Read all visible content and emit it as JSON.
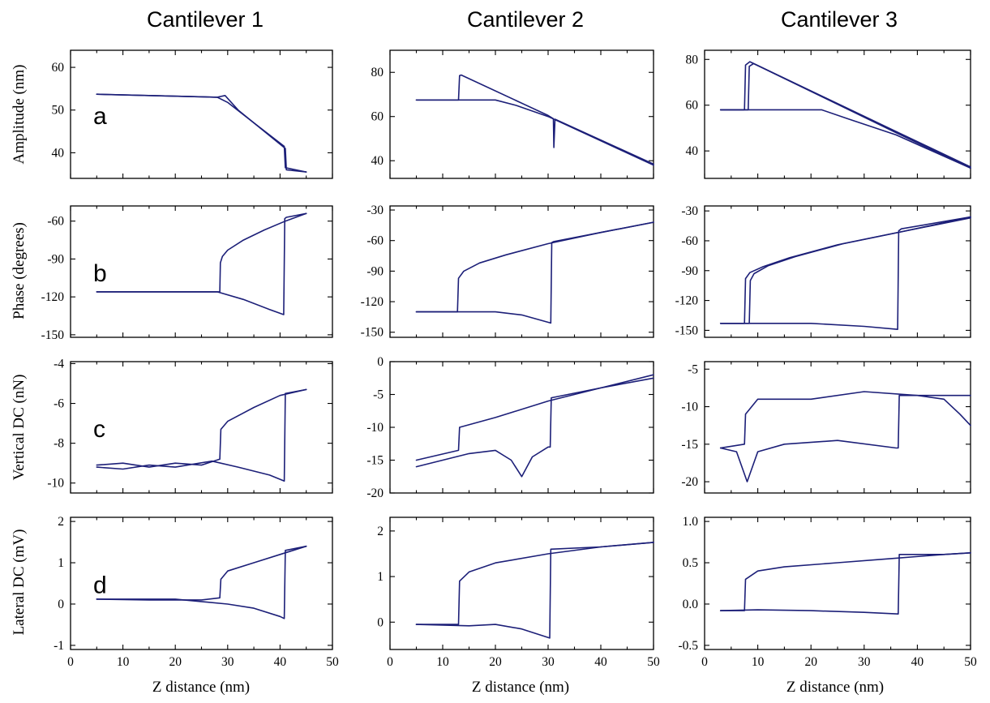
{
  "figure": {
    "column_titles": [
      "Cantilever 1",
      "Cantilever 2",
      "Cantilever 3"
    ],
    "row_ylabels": [
      "Amplitude (nm)",
      "Phase (degrees)",
      "Vertical DC (nN)",
      "Lateral DC (mV)"
    ],
    "row_letters": [
      "a",
      "b",
      "c",
      "d"
    ],
    "xlabel": "Z distance (nm)",
    "line_color": "#1c1f78"
  },
  "chart_data": [
    {
      "type": "line",
      "panel": "a",
      "column": 1,
      "ylabel": "Amplitude (nm)",
      "xlabel": "Z distance (nm)",
      "xlim": [
        0,
        50
      ],
      "ylim": [
        34,
        64
      ],
      "xticks": [
        0,
        10,
        20,
        30,
        40,
        50
      ],
      "yticks": [
        40,
        50,
        60
      ],
      "series": [
        {
          "x": [
            5,
            28,
            29.5,
            32,
            41,
            41.2,
            45
          ],
          "y": [
            53.7,
            53.0,
            53.4,
            50.0,
            41.0,
            36.0,
            35.5
          ]
        },
        {
          "x": [
            5,
            28,
            30,
            35,
            40.8,
            41,
            45
          ],
          "y": [
            53.7,
            53.0,
            51.8,
            47.0,
            41.5,
            36.5,
            35.5
          ]
        }
      ]
    },
    {
      "type": "line",
      "panel": "a",
      "column": 2,
      "ylabel": "Amplitude (nm)",
      "xlabel": "Z distance (nm)",
      "xlim": [
        0,
        50
      ],
      "ylim": [
        32,
        90
      ],
      "xticks": [
        0,
        10,
        20,
        30,
        40,
        50
      ],
      "yticks": [
        40,
        60,
        80
      ],
      "series": [
        {
          "x": [
            5,
            13,
            13.2,
            13.5,
            30,
            31,
            31.1,
            31.3,
            50
          ],
          "y": [
            67.5,
            67.5,
            78.5,
            78.8,
            60.5,
            59,
            46,
            58.8,
            38.5
          ]
        },
        {
          "x": [
            5,
            20,
            24,
            30,
            40,
            50
          ],
          "y": [
            67.5,
            67.5,
            65,
            60,
            49,
            38
          ]
        }
      ]
    },
    {
      "type": "line",
      "panel": "a",
      "column": 3,
      "ylabel": "Amplitude (nm)",
      "xlabel": "Z distance (nm)",
      "xlim": [
        0,
        50
      ],
      "ylim": [
        28,
        84
      ],
      "xticks": [
        0,
        10,
        20,
        30,
        40,
        50
      ],
      "yticks": [
        40,
        60,
        80
      ],
      "series": [
        {
          "x": [
            3,
            7.5,
            7.7,
            8.5,
            36,
            50
          ],
          "y": [
            58,
            58,
            77.5,
            79,
            48.5,
            33
          ]
        },
        {
          "x": [
            3,
            8.2,
            8.4,
            9.2,
            36,
            50
          ],
          "y": [
            58,
            58,
            77,
            78.2,
            48,
            32.5
          ]
        },
        {
          "x": [
            3,
            22,
            27,
            36,
            50
          ],
          "y": [
            58,
            58,
            54,
            47,
            32.5
          ]
        }
      ]
    },
    {
      "type": "line",
      "panel": "b",
      "column": 1,
      "ylabel": "Phase (degrees)",
      "xlabel": "Z distance (nm)",
      "xlim": [
        0,
        50
      ],
      "ylim": [
        -152,
        -48
      ],
      "xticks": [
        0,
        10,
        20,
        30,
        40,
        50
      ],
      "yticks": [
        -60,
        -90,
        -120,
        -150
      ],
      "series": [
        {
          "x": [
            5,
            28.5,
            28.6,
            29,
            30,
            33,
            37,
            41,
            45
          ],
          "y": [
            -116,
            -116,
            -93,
            -88,
            -83,
            -75,
            -67,
            -60,
            -54
          ]
        },
        {
          "x": [
            5,
            28,
            33,
            38,
            40.7,
            40.9,
            41.2,
            45
          ],
          "y": [
            -116,
            -116,
            -122,
            -130,
            -134,
            -58,
            -57,
            -54
          ]
        }
      ]
    },
    {
      "type": "line",
      "panel": "b",
      "column": 2,
      "ylabel": "Phase (degrees)",
      "xlabel": "Z distance (nm)",
      "xlim": [
        0,
        50
      ],
      "ylim": [
        -155,
        -26
      ],
      "xticks": [
        0,
        10,
        20,
        30,
        40,
        50
      ],
      "yticks": [
        -30,
        -60,
        -90,
        -120,
        -150
      ],
      "series": [
        {
          "x": [
            5,
            12.8,
            13,
            14,
            17,
            22,
            30,
            40,
            50
          ],
          "y": [
            -130,
            -130,
            -97,
            -90,
            -82,
            -74,
            -63,
            -52,
            -42
          ]
        },
        {
          "x": [
            5,
            20,
            25,
            30.5,
            30.7,
            31,
            40,
            50
          ],
          "y": [
            -130,
            -130,
            -133,
            -141,
            -62,
            -61,
            -52,
            -42
          ]
        }
      ]
    },
    {
      "type": "line",
      "panel": "b",
      "column": 3,
      "ylabel": "Phase (degrees)",
      "xlabel": "Z distance (nm)",
      "xlim": [
        0,
        50
      ],
      "ylim": [
        -157,
        -25
      ],
      "xticks": [
        0,
        10,
        20,
        30,
        40,
        50
      ],
      "yticks": [
        -30,
        -60,
        -90,
        -120,
        -150
      ],
      "series": [
        {
          "x": [
            3,
            7.5,
            7.7,
            8.5,
            11,
            16,
            25,
            36,
            50
          ],
          "y": [
            -143,
            -143,
            -98,
            -92,
            -86,
            -77,
            -64,
            -52,
            -37
          ]
        },
        {
          "x": [
            3,
            8.4,
            8.6,
            9.3,
            12,
            17,
            26,
            37,
            50
          ],
          "y": [
            -143,
            -143,
            -100,
            -93,
            -85,
            -76,
            -63,
            -51,
            -36
          ]
        },
        {
          "x": [
            3,
            20,
            30,
            36.3,
            36.5,
            37,
            50
          ],
          "y": [
            -143,
            -143,
            -146,
            -149,
            -50,
            -48,
            -36
          ]
        }
      ]
    },
    {
      "type": "line",
      "panel": "c",
      "column": 1,
      "ylabel": "Vertical DC (nN)",
      "xlabel": "Z distance (nm)",
      "xlim": [
        0,
        50
      ],
      "ylim": [
        -10.5,
        -3.9
      ],
      "xticks": [
        0,
        10,
        20,
        30,
        40,
        50
      ],
      "yticks": [
        -4,
        -6,
        -8,
        -10
      ],
      "series": [
        {
          "x": [
            5,
            10,
            15,
            20,
            25,
            28.5,
            28.7,
            30,
            35,
            40,
            45
          ],
          "y": [
            -9.1,
            -9.0,
            -9.2,
            -9.0,
            -9.1,
            -8.8,
            -7.3,
            -6.9,
            -6.2,
            -5.6,
            -5.3
          ]
        },
        {
          "x": [
            5,
            10,
            15,
            20,
            27,
            32,
            38,
            40.8,
            41,
            45
          ],
          "y": [
            -9.2,
            -9.3,
            -9.1,
            -9.2,
            -8.9,
            -9.2,
            -9.6,
            -9.9,
            -5.5,
            -5.3
          ]
        }
      ]
    },
    {
      "type": "line",
      "panel": "c",
      "column": 2,
      "ylabel": "Vertical DC (nN)",
      "xlabel": "Z distance (nm)",
      "xlim": [
        0,
        50
      ],
      "ylim": [
        -20,
        0
      ],
      "xticks": [
        0,
        10,
        20,
        30,
        40,
        50
      ],
      "yticks": [
        0,
        -5,
        -10,
        -15,
        -20
      ],
      "series": [
        {
          "x": [
            5,
            13,
            13.2,
            20,
            30,
            40,
            50
          ],
          "y": [
            -15,
            -13.5,
            -10,
            -8.5,
            -6,
            -4,
            -2
          ]
        },
        {
          "x": [
            5,
            15,
            20,
            23,
            25,
            27,
            30,
            30.4,
            30.6,
            40,
            50
          ],
          "y": [
            -16,
            -14,
            -13.5,
            -15,
            -17.5,
            -14.5,
            -13,
            -13,
            -5.5,
            -4,
            -2.5
          ]
        }
      ]
    },
    {
      "type": "line",
      "panel": "c",
      "column": 3,
      "ylabel": "Vertical DC (nN)",
      "xlabel": "Z distance (nm)",
      "xlim": [
        0,
        50
      ],
      "ylim": [
        -21.5,
        -4
      ],
      "xticks": [
        0,
        10,
        20,
        30,
        40,
        50
      ],
      "yticks": [
        -5,
        -10,
        -15,
        -20
      ],
      "series": [
        {
          "x": [
            3,
            7.5,
            7.7,
            10,
            20,
            30,
            40,
            45,
            48,
            50
          ],
          "y": [
            -15.5,
            -15,
            -11,
            -9,
            -9,
            -8,
            -8.5,
            -9,
            -11,
            -12.5
          ]
        },
        {
          "x": [
            3,
            6,
            8,
            10,
            15,
            25,
            36,
            36.4,
            36.6,
            45,
            50
          ],
          "y": [
            -15.5,
            -16,
            -20,
            -16,
            -15,
            -14.5,
            -15.5,
            -15.5,
            -8.5,
            -8.5,
            -8.5
          ]
        }
      ]
    },
    {
      "type": "line",
      "panel": "d",
      "column": 1,
      "ylabel": "Lateral DC (mV)",
      "xlabel": "Z distance (nm)",
      "xlim": [
        0,
        50
      ],
      "ylim": [
        -1.1,
        2.1
      ],
      "xticks": [
        0,
        10,
        20,
        30,
        40,
        50
      ],
      "yticks": [
        -1,
        0,
        1,
        2
      ],
      "series": [
        {
          "x": [
            5,
            15,
            25,
            28.5,
            28.7,
            30,
            35,
            40,
            45
          ],
          "y": [
            0.12,
            0.1,
            0.1,
            0.15,
            0.6,
            0.8,
            1.0,
            1.2,
            1.4
          ]
        },
        {
          "x": [
            5,
            20,
            30,
            35,
            40,
            40.8,
            41,
            45
          ],
          "y": [
            0.12,
            0.12,
            0.0,
            -0.1,
            -0.3,
            -0.35,
            1.3,
            1.4
          ]
        }
      ]
    },
    {
      "type": "line",
      "panel": "d",
      "column": 2,
      "ylabel": "Lateral DC (mV)",
      "xlabel": "Z distance (nm)",
      "xlim": [
        0,
        50
      ],
      "ylim": [
        -0.6,
        2.3
      ],
      "xticks": [
        0,
        10,
        20,
        30,
        40,
        50
      ],
      "yticks": [
        0,
        1,
        2
      ],
      "series": [
        {
          "x": [
            5,
            13,
            13.2,
            15,
            20,
            30,
            40,
            50
          ],
          "y": [
            -0.05,
            -0.05,
            0.9,
            1.1,
            1.3,
            1.5,
            1.65,
            1.75
          ]
        },
        {
          "x": [
            5,
            15,
            20,
            25,
            29,
            30.3,
            30.5,
            40,
            50
          ],
          "y": [
            -0.05,
            -0.08,
            -0.05,
            -0.15,
            -0.3,
            -0.35,
            1.6,
            1.65,
            1.75
          ]
        }
      ]
    },
    {
      "type": "line",
      "panel": "d",
      "column": 3,
      "ylabel": "Lateral DC (mV)",
      "xlabel": "Z distance (nm)",
      "xlim": [
        0,
        50
      ],
      "ylim": [
        -0.55,
        1.05
      ],
      "xticks": [
        0,
        10,
        20,
        30,
        40,
        50
      ],
      "yticks": [
        1.0,
        0.5,
        0.0,
        -0.5
      ],
      "series": [
        {
          "x": [
            3,
            7.5,
            7.7,
            10,
            15,
            25,
            35,
            45,
            50
          ],
          "y": [
            -0.08,
            -0.08,
            0.3,
            0.4,
            0.45,
            0.5,
            0.55,
            0.6,
            0.62
          ]
        },
        {
          "x": [
            3,
            10,
            20,
            30,
            36.4,
            36.6,
            45,
            50
          ],
          "y": [
            -0.08,
            -0.07,
            -0.08,
            -0.1,
            -0.12,
            0.6,
            0.6,
            0.62
          ]
        }
      ]
    }
  ]
}
